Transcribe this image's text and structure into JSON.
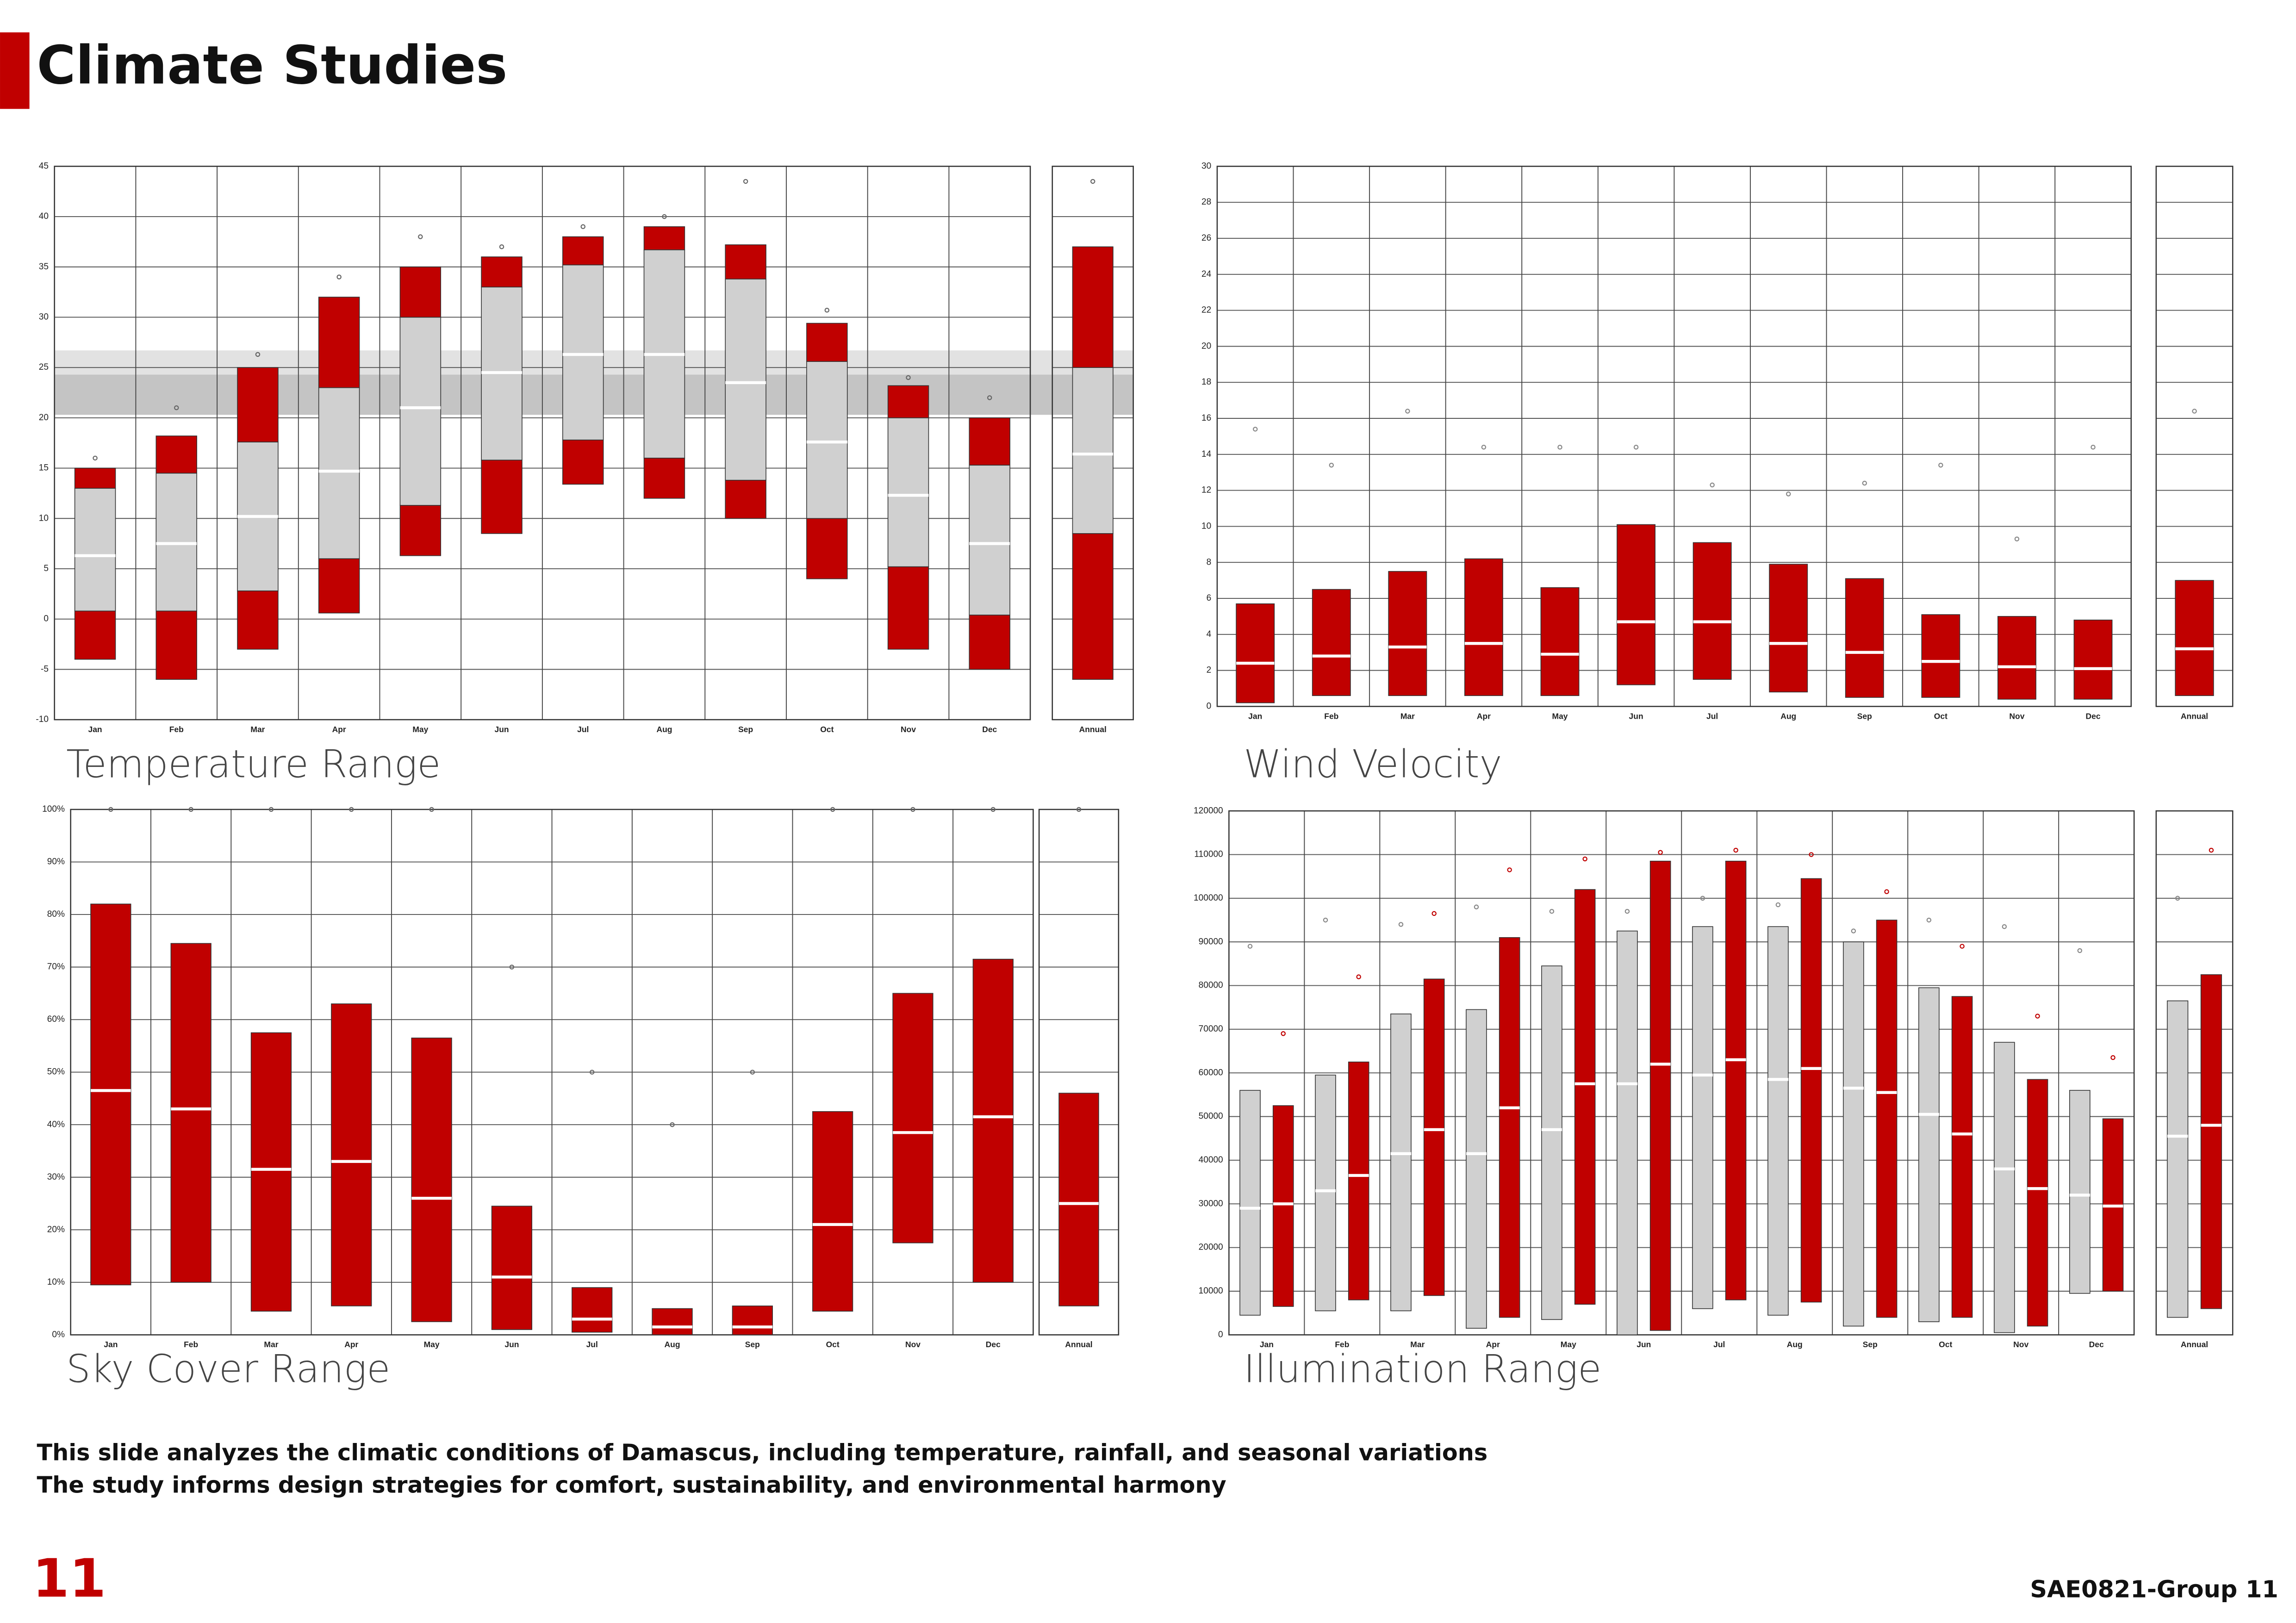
{
  "page": {
    "title": "Climate Studies",
    "notes": [
      "This slide analyzes the climatic conditions of Damascus, including temperature, rainfall, and seasonal variations",
      "The study informs design strategies for comfort, sustainability, and environmental harmony"
    ],
    "page_number": "11",
    "footer": "SAE0821-Group 11"
  },
  "chart_data": [
    {
      "type": "range",
      "title": "Temperature Range",
      "categories": [
        "Jan",
        "Feb",
        "Mar",
        "Apr",
        "May",
        "Jun",
        "Jul",
        "Aug",
        "Sep",
        "Oct",
        "Nov",
        "Dec",
        "Annual"
      ],
      "ylim": [
        -10,
        45
      ],
      "yticks": [
        -10,
        -5,
        0,
        5,
        10,
        15,
        20,
        25,
        30,
        35,
        40,
        45
      ],
      "grid": true,
      "bands": [
        {
          "from": 20.3,
          "to": 24.3,
          "color": "#c4c4c4"
        },
        {
          "from": 24.3,
          "to": 26.7,
          "color": "#e2e2e2"
        }
      ],
      "series": [
        {
          "color": "#c00000",
          "mid_color": "#d0d0d0",
          "record_color": "#666666",
          "min": [
            -4,
            -6,
            -3,
            0.6,
            6.3,
            8.5,
            13.4,
            12,
            10,
            4,
            -3,
            -5,
            -6
          ],
          "q1": [
            0.8,
            0.8,
            2.8,
            6,
            11.3,
            15.8,
            17.8,
            16,
            13.8,
            10,
            5.2,
            0.4,
            8.5
          ],
          "median": [
            6.3,
            7.5,
            10.2,
            14.7,
            21,
            24.5,
            26.3,
            26.3,
            23.5,
            17.6,
            12.3,
            7.5,
            16.4
          ],
          "q3": [
            13,
            14.5,
            17.6,
            23,
            30,
            33,
            35.2,
            36.7,
            33.8,
            25.6,
            20,
            15.3,
            25
          ],
          "max": [
            15,
            18.2,
            25,
            32,
            35,
            36,
            38,
            39,
            37.2,
            29.4,
            23.2,
            20,
            37
          ],
          "record": [
            16,
            21,
            26.3,
            34,
            38,
            37,
            39,
            40,
            43.5,
            30.7,
            24,
            22,
            43.5
          ]
        }
      ]
    },
    {
      "type": "range",
      "title": "Wind Velocity",
      "categories": [
        "Jan",
        "Feb",
        "Mar",
        "Apr",
        "May",
        "Jun",
        "Jul",
        "Aug",
        "Sep",
        "Oct",
        "Nov",
        "Dec",
        "Annual"
      ],
      "ylim": [
        0,
        30
      ],
      "yticks": [
        0,
        2,
        4,
        6,
        8,
        10,
        12,
        14,
        16,
        18,
        20,
        22,
        24,
        26,
        28,
        30
      ],
      "grid": true,
      "series": [
        {
          "color": "#c00000",
          "record_color": "#888888",
          "min": [
            0.2,
            0.6,
            0.6,
            0.6,
            0.6,
            1.2,
            1.5,
            0.8,
            0.5,
            0.5,
            0.4,
            0.4,
            0.6
          ],
          "median": [
            2.4,
            2.8,
            3.3,
            3.5,
            2.9,
            4.7,
            4.7,
            3.5,
            3,
            2.5,
            2.2,
            2.1,
            3.2
          ],
          "max": [
            5.7,
            6.5,
            7.5,
            8.2,
            6.6,
            10.1,
            9.1,
            7.9,
            7.1,
            5.1,
            5,
            4.8,
            7
          ],
          "record": [
            15.4,
            13.4,
            16.4,
            14.4,
            14.4,
            14.4,
            12.3,
            11.8,
            12.4,
            13.4,
            9.3,
            14.4,
            16.4
          ]
        }
      ]
    },
    {
      "type": "range",
      "title": "Sky Cover Range",
      "categories": [
        "Jan",
        "Feb",
        "Mar",
        "Apr",
        "May",
        "Jun",
        "Jul",
        "Aug",
        "Sep",
        "Oct",
        "Nov",
        "Dec",
        "Annual"
      ],
      "ylim": [
        0,
        100
      ],
      "yticks": [
        {
          "value": 0,
          "label": "0%"
        },
        {
          "value": 10,
          "label": "10%"
        },
        {
          "value": 20,
          "label": "20%"
        },
        {
          "value": 30,
          "label": "30%"
        },
        {
          "value": 40,
          "label": "40%"
        },
        {
          "value": 50,
          "label": "50%"
        },
        {
          "value": 60,
          "label": "60%"
        },
        {
          "value": 70,
          "label": "70%"
        },
        {
          "value": 80,
          "label": "80%"
        },
        {
          "value": 90,
          "label": "90%"
        },
        {
          "value": 100,
          "label": "100%"
        }
      ],
      "grid": true,
      "series": [
        {
          "color": "#c00000",
          "record_color": "#666666",
          "min": [
            9.5,
            10,
            4.5,
            5.5,
            2.5,
            1,
            0.5,
            0,
            0,
            4.5,
            17.5,
            10,
            5.5
          ],
          "median": [
            46.5,
            43,
            31.5,
            33,
            26,
            11,
            3,
            1.5,
            1.5,
            21,
            38.5,
            41.5,
            25
          ],
          "max": [
            82,
            74.5,
            57.5,
            63,
            56.5,
            24.5,
            9,
            5,
            5.5,
            42.5,
            65,
            71.5,
            46
          ],
          "record": [
            100,
            100,
            100,
            100,
            100,
            70,
            50,
            40,
            50,
            100,
            100,
            100,
            100
          ]
        }
      ]
    },
    {
      "type": "range",
      "title": "Illumination Range",
      "categories": [
        "Jan",
        "Feb",
        "Mar",
        "Apr",
        "May",
        "Jun",
        "Jul",
        "Aug",
        "Sep",
        "Oct",
        "Nov",
        "Dec",
        "Annual"
      ],
      "ylim": [
        0,
        120000
      ],
      "yticks": [
        0,
        10000,
        20000,
        30000,
        40000,
        50000,
        60000,
        70000,
        80000,
        90000,
        100000,
        110000,
        120000
      ],
      "grid": true,
      "series": [
        {
          "color": "#d0d0d0",
          "record_color": "#888888",
          "min": [
            4500,
            5500,
            5500,
            1500,
            3500,
            0,
            6000,
            4500,
            2000,
            3000,
            500,
            9500,
            4000
          ],
          "median": [
            29000,
            33000,
            41500,
            41500,
            47000,
            57500,
            59500,
            58500,
            56500,
            50500,
            38000,
            32000,
            45500
          ],
          "max": [
            56000,
            59500,
            73500,
            74500,
            84500,
            92500,
            93500,
            93500,
            90000,
            79500,
            67000,
            56000,
            76500
          ],
          "record": [
            89000,
            95000,
            94000,
            98000,
            97000,
            97000,
            100000,
            98500,
            92500,
            95000,
            93500,
            88000,
            100000
          ]
        },
        {
          "color": "#c00000",
          "record_color": "#c00000",
          "min": [
            6500,
            8000,
            9000,
            4000,
            7000,
            1000,
            8000,
            7500,
            4000,
            4000,
            2000,
            10000,
            6000
          ],
          "median": [
            30000,
            36500,
            47000,
            52000,
            57500,
            62000,
            63000,
            61000,
            55500,
            46000,
            33500,
            29500,
            48000
          ],
          "max": [
            52500,
            62500,
            81500,
            91000,
            102000,
            108500,
            108500,
            104500,
            95000,
            77500,
            58500,
            49500,
            82500
          ],
          "record": [
            69000,
            82000,
            96500,
            106500,
            109000,
            110500,
            111000,
            110000,
            101500,
            89000,
            73000,
            63500,
            111000
          ]
        }
      ]
    }
  ]
}
